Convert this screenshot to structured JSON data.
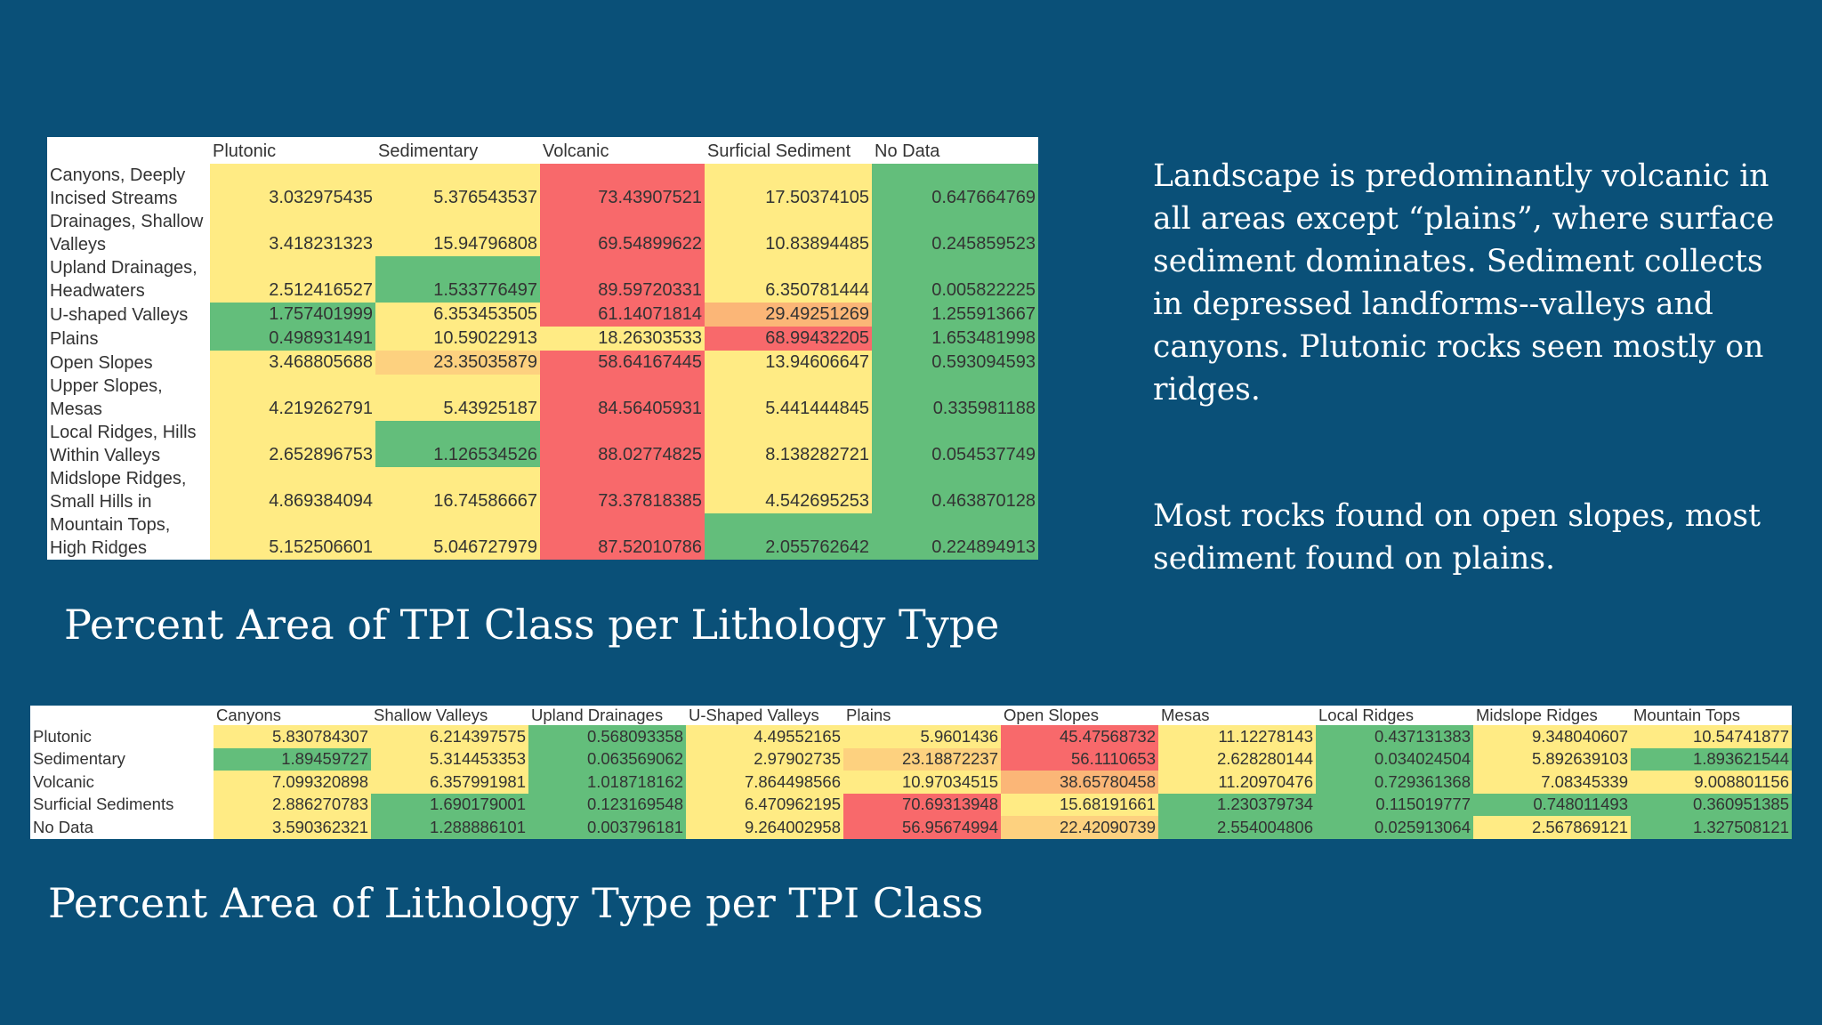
{
  "colors": {
    "background": "#0a5078",
    "scale_low": "#63be7b",
    "scale_mid": "#ffeb84",
    "scale_high": "#f8696b"
  },
  "table1": {
    "caption": "Percent Area of TPI Class per Lithology Type",
    "columns": [
      "Plutonic",
      "Sedimentary",
      "Volcanic",
      "Surficial Sediment",
      "No Data"
    ],
    "rows": [
      {
        "label": "Canyons, Deeply Incised Streams",
        "values": [
          "3.032975435",
          "5.376543537",
          "73.43907521",
          "17.50374105",
          "0.647664769"
        ],
        "colors": [
          "#ffeb84",
          "#ffeb84",
          "#f8696b",
          "#ffeb84",
          "#63be7b"
        ]
      },
      {
        "label": "Drainages, Shallow Valleys",
        "values": [
          "3.418231323",
          "15.94796808",
          "69.54899622",
          "10.83894485",
          "0.245859523"
        ],
        "colors": [
          "#ffeb84",
          "#ffeb84",
          "#f8696b",
          "#ffeb84",
          "#63be7b"
        ]
      },
      {
        "label": "Upland Drainages, Headwaters",
        "values": [
          "2.512416527",
          "1.533776497",
          "89.59720331",
          "6.350781444",
          "0.005822225"
        ],
        "colors": [
          "#ffeb84",
          "#63be7b",
          "#f8696b",
          "#ffeb84",
          "#63be7b"
        ]
      },
      {
        "label": "U-shaped Valleys",
        "values": [
          "1.757401999",
          "6.353453505",
          "61.14071814",
          "29.49251269",
          "1.255913667"
        ],
        "colors": [
          "#63be7b",
          "#ffeb84",
          "#f8696b",
          "#fbb677",
          "#63be7b"
        ]
      },
      {
        "label": "Plains",
        "values": [
          "0.498931491",
          "10.59022913",
          "18.26303533",
          "68.99432205",
          "1.653481998"
        ],
        "colors": [
          "#63be7b",
          "#ffeb84",
          "#ffeb84",
          "#f8696b",
          "#63be7b"
        ]
      },
      {
        "label": "Open Slopes",
        "values": [
          "3.468805688",
          "23.35035879",
          "58.64167445",
          "13.94606647",
          "0.593094593"
        ],
        "colors": [
          "#ffeb84",
          "#fdd17f",
          "#f8696b",
          "#ffeb84",
          "#63be7b"
        ]
      },
      {
        "label": "Upper Slopes, Mesas",
        "values": [
          "4.219262791",
          "5.43925187",
          "84.56405931",
          "5.441444845",
          "0.335981188"
        ],
        "colors": [
          "#ffeb84",
          "#ffeb84",
          "#f8696b",
          "#ffeb84",
          "#63be7b"
        ]
      },
      {
        "label": "Local Ridges, Hills Within Valleys",
        "values": [
          "2.652896753",
          "1.126534526",
          "88.02774825",
          "8.138282721",
          "0.054537749"
        ],
        "colors": [
          "#ffeb84",
          "#63be7b",
          "#f8696b",
          "#ffeb84",
          "#63be7b"
        ]
      },
      {
        "label": "Midslope Ridges, Small Hills in",
        "values": [
          "4.869384094",
          "16.74586667",
          "73.37818385",
          "4.542695253",
          "0.463870128"
        ],
        "colors": [
          "#ffeb84",
          "#ffeb84",
          "#f8696b",
          "#ffeb84",
          "#63be7b"
        ]
      },
      {
        "label": "Mountain Tops, High Ridges",
        "values": [
          "5.152506601",
          "5.046727979",
          "87.52010786",
          "2.055762642",
          "0.224894913"
        ],
        "colors": [
          "#ffeb84",
          "#ffeb84",
          "#f8696b",
          "#63be7b",
          "#63be7b"
        ]
      }
    ]
  },
  "table2": {
    "caption": "Percent Area of Lithology Type per TPI Class",
    "columns": [
      "Canyons",
      "Shallow Valleys",
      "Upland Drainages",
      "U-Shaped Valleys",
      "Plains",
      "Open Slopes",
      "Mesas",
      "Local Ridges",
      "Midslope Ridges",
      "Mountain Tops"
    ],
    "rows": [
      {
        "label": "Plutonic",
        "values": [
          "5.830784307",
          "6.214397575",
          "0.568093358",
          "4.49552165",
          "5.9601436",
          "45.47568732",
          "11.12278143",
          "0.437131383",
          "9.348040607",
          "10.54741877"
        ],
        "colors": [
          "#ffeb84",
          "#ffeb84",
          "#63be7b",
          "#ffeb84",
          "#ffeb84",
          "#f8696b",
          "#ffeb84",
          "#63be7b",
          "#ffeb84",
          "#ffeb84"
        ]
      },
      {
        "label": "Sedimentary",
        "values": [
          "1.89459727",
          "5.314453353",
          "0.063569062",
          "2.97902735",
          "23.18872237",
          "56.1110653",
          "2.628280144",
          "0.034024504",
          "5.892639103",
          "1.893621544"
        ],
        "colors": [
          "#63be7b",
          "#ffeb84",
          "#63be7b",
          "#ffeb84",
          "#fdd17f",
          "#f8696b",
          "#ffeb84",
          "#63be7b",
          "#ffeb84",
          "#63be7b"
        ]
      },
      {
        "label": "Volcanic",
        "values": [
          "7.099320898",
          "6.357991981",
          "1.018718162",
          "7.864498566",
          "10.97034515",
          "38.65780458",
          "11.20970476",
          "0.729361368",
          "7.08345339",
          "9.008801156"
        ],
        "colors": [
          "#ffeb84",
          "#ffeb84",
          "#63be7b",
          "#ffeb84",
          "#ffeb84",
          "#fbb677",
          "#ffeb84",
          "#63be7b",
          "#ffeb84",
          "#ffeb84"
        ]
      },
      {
        "label": "Surficial Sediments",
        "values": [
          "2.886270783",
          "1.690179001",
          "0.123169548",
          "6.470962195",
          "70.69313948",
          "15.68191661",
          "1.230379734",
          "0.115019777",
          "0.748011493",
          "0.360951385"
        ],
        "colors": [
          "#ffeb84",
          "#63be7b",
          "#63be7b",
          "#ffeb84",
          "#f8696b",
          "#ffeb84",
          "#63be7b",
          "#63be7b",
          "#63be7b",
          "#63be7b"
        ]
      },
      {
        "label": "No Data",
        "values": [
          "3.590362321",
          "1.288886101",
          "0.003796181",
          "9.264002958",
          "56.95674994",
          "22.42090739",
          "2.554004806",
          "0.025913064",
          "2.567869121",
          "1.327508121"
        ],
        "colors": [
          "#ffeb84",
          "#63be7b",
          "#63be7b",
          "#ffeb84",
          "#f8696b",
          "#fdd17f",
          "#63be7b",
          "#63be7b",
          "#ffeb84",
          "#63be7b"
        ]
      }
    ]
  },
  "notes": {
    "paragraph1": "Landscape is predominantly volcanic in all areas except “plains”, where surface sediment dominates. Sediment collects in depressed landforms--valleys and canyons. Plutonic rocks seen mostly on ridges.",
    "paragraph2": "Most rocks found on open slopes, most sediment found on plains."
  }
}
